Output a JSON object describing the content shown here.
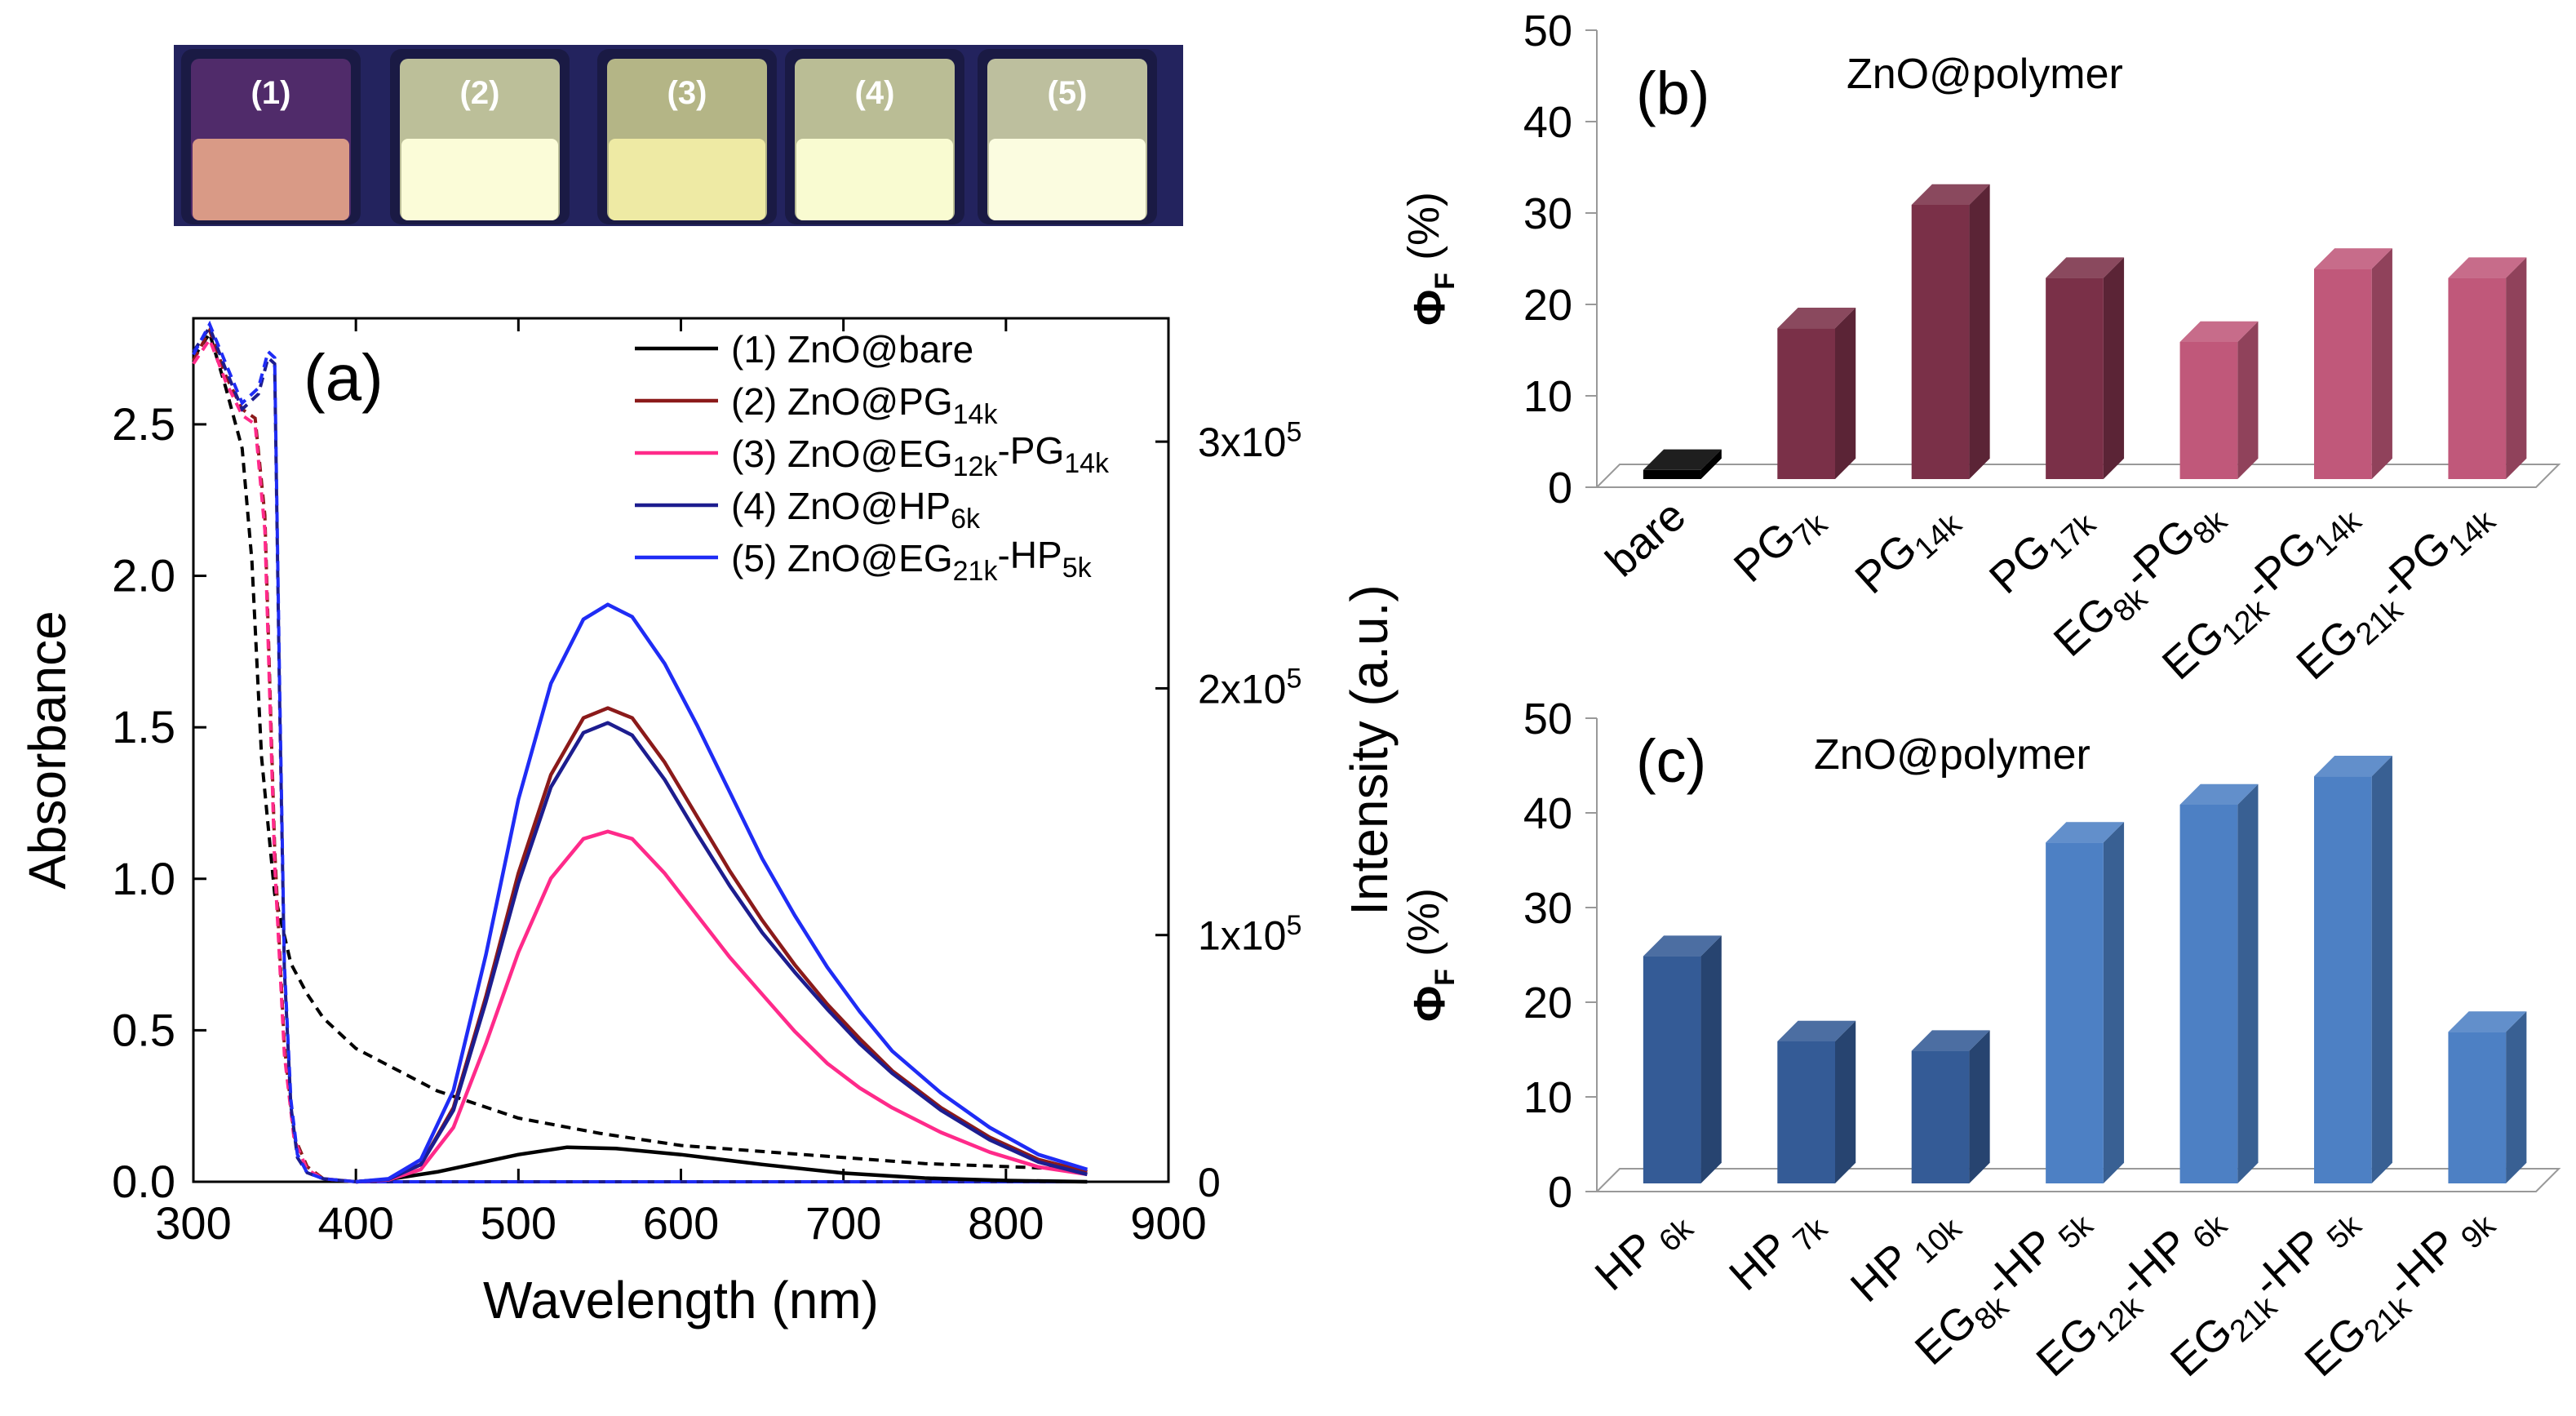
{
  "photo": {
    "labels": [
      "(1)",
      "(2)",
      "(3)",
      "(4)",
      "(5)"
    ],
    "vial_colors": [
      "#7d3b8a",
      "#f3f7b6",
      "#e8ea9c",
      "#f0f4b0",
      "#f4f7bc"
    ],
    "liquid_colors": [
      "#d99a86",
      "#fbfcd8",
      "#eeeaa4",
      "#f9fbd1",
      "#fbfce0"
    ],
    "background": "#23235e"
  },
  "colors": {
    "s1": "#000000",
    "s2": "#8b1a1a",
    "s3": "#ff2a8a",
    "s4": "#1d1d8f",
    "s5": "#1f2cf5",
    "bar_bare": "#000000",
    "bar_pg": "#7a3048",
    "bar_eg_pg": "#c0587a",
    "bar_hp": "#345b96",
    "bar_eg_hp": "#4d80c4"
  },
  "chart_data": [
    {
      "id": "a",
      "type": "line",
      "panel_label": "(a)",
      "xlabel": "Wavelength (nm)",
      "ylabel": "Absorbance",
      "y2label": "Intensity (a.u.)",
      "xlim": [
        300,
        900
      ],
      "ylim": [
        0,
        2.85
      ],
      "y2lim": [
        0,
        350000
      ],
      "xticks": [
        "300",
        "400",
        "500",
        "600",
        "700",
        "800",
        "900"
      ],
      "yticks": [
        "0.0",
        "0.5",
        "1.0",
        "1.5",
        "2.0",
        "2.5"
      ],
      "y2ticks": [
        {
          "value": 0,
          "base": "0",
          "exp": ""
        },
        {
          "value": 100000,
          "base": "1x10",
          "exp": "5"
        },
        {
          "value": 200000,
          "base": "2x10",
          "exp": "5"
        },
        {
          "value": 300000,
          "base": "3x10",
          "exp": "5"
        }
      ],
      "legend": [
        {
          "key": "s1",
          "prefix": "(1) ZnO@bare",
          "parts": []
        },
        {
          "key": "s2",
          "prefix": "(2) ZnO@PG",
          "parts": [
            {
              "sub": "14k"
            }
          ]
        },
        {
          "key": "s3",
          "prefix": "(3) ZnO@EG",
          "parts": [
            {
              "sub": "12k"
            },
            {
              "text": "-PG"
            },
            {
              "sub": "14k"
            }
          ]
        },
        {
          "key": "s4",
          "prefix": "(4) ZnO@HP",
          "parts": [
            {
              "sub": "6k"
            }
          ]
        },
        {
          "key": "s5",
          "prefix": "(5) ZnO@EG",
          "parts": [
            {
              "sub": "21k"
            },
            {
              "text": "-HP"
            },
            {
              "sub": "5k"
            }
          ]
        }
      ],
      "absorbance_series": [
        {
          "key": "s1",
          "x": [
            300,
            310,
            320,
            330,
            336,
            342,
            350,
            360,
            370,
            380,
            400,
            450,
            500,
            550,
            600,
            650,
            700,
            750,
            800,
            850
          ],
          "y": [
            2.72,
            2.8,
            2.62,
            2.42,
            2.05,
            1.4,
            0.95,
            0.72,
            0.62,
            0.54,
            0.44,
            0.3,
            0.21,
            0.16,
            0.12,
            0.1,
            0.08,
            0.06,
            0.05,
            0.04
          ]
        },
        {
          "key": "s2",
          "x": [
            300,
            310,
            320,
            330,
            338,
            344,
            350,
            356,
            362,
            370,
            380,
            400,
            500,
            700,
            850
          ],
          "y": [
            2.71,
            2.81,
            2.66,
            2.55,
            2.52,
            2.2,
            1.1,
            0.45,
            0.15,
            0.05,
            0.01,
            0.0,
            0.0,
            0.0,
            0.0
          ]
        },
        {
          "key": "s3",
          "x": [
            300,
            310,
            320,
            330,
            338,
            344,
            350,
            356,
            362,
            370,
            380,
            400,
            500,
            700,
            850
          ],
          "y": [
            2.7,
            2.78,
            2.64,
            2.53,
            2.5,
            2.15,
            1.05,
            0.42,
            0.14,
            0.04,
            0.01,
            0.0,
            0.0,
            0.0,
            0.0
          ]
        },
        {
          "key": "s4",
          "x": [
            300,
            310,
            320,
            330,
            340,
            346,
            350,
            353,
            356,
            360,
            364,
            370,
            380,
            400,
            500,
            700,
            850
          ],
          "y": [
            2.74,
            2.82,
            2.68,
            2.55,
            2.6,
            2.72,
            2.7,
            1.6,
            0.7,
            0.25,
            0.08,
            0.03,
            0.01,
            0.0,
            0.0,
            0.0,
            0.0
          ]
        },
        {
          "key": "s5",
          "x": [
            300,
            310,
            320,
            330,
            340,
            346,
            350,
            353,
            356,
            360,
            364,
            370,
            380,
            400,
            500,
            700,
            850
          ],
          "y": [
            2.73,
            2.83,
            2.7,
            2.57,
            2.62,
            2.74,
            2.72,
            1.65,
            0.72,
            0.27,
            0.09,
            0.03,
            0.01,
            0.0,
            0.0,
            0.0,
            0.0
          ]
        }
      ],
      "emission_series": [
        {
          "key": "s1",
          "x": [
            400,
            420,
            450,
            500,
            530,
            560,
            600,
            650,
            700,
            750,
            800,
            850
          ],
          "y": [
            0,
            1000,
            4000,
            11000,
            14000,
            13500,
            11000,
            7000,
            3500,
            1500,
            500,
            0
          ]
        },
        {
          "key": "s2",
          "x": [
            400,
            420,
            440,
            460,
            480,
            500,
            520,
            540,
            555,
            570,
            590,
            610,
            630,
            650,
            670,
            690,
            710,
            730,
            760,
            790,
            820,
            850
          ],
          "y": [
            0,
            1000,
            7000,
            30000,
            75000,
            125000,
            165000,
            188000,
            192000,
            188000,
            170000,
            148000,
            126000,
            106000,
            88000,
            72000,
            58000,
            45000,
            30000,
            18000,
            9000,
            4000
          ]
        },
        {
          "key": "s3",
          "x": [
            400,
            420,
            440,
            460,
            480,
            500,
            520,
            540,
            555,
            570,
            590,
            610,
            630,
            650,
            670,
            690,
            710,
            730,
            760,
            790,
            820,
            850
          ],
          "y": [
            0,
            800,
            5000,
            22000,
            56000,
            93000,
            123000,
            139000,
            142000,
            139000,
            125000,
            108000,
            91000,
            76000,
            61000,
            48000,
            38000,
            30000,
            20000,
            12000,
            6000,
            3000
          ]
        },
        {
          "key": "s4",
          "x": [
            400,
            420,
            440,
            460,
            480,
            500,
            520,
            540,
            555,
            570,
            590,
            610,
            630,
            650,
            670,
            690,
            710,
            730,
            760,
            790,
            820,
            850
          ],
          "y": [
            0,
            1000,
            7000,
            29000,
            73000,
            121000,
            160000,
            182000,
            186000,
            181000,
            163000,
            141000,
            120000,
            101000,
            85000,
            70000,
            56000,
            44000,
            29000,
            17000,
            8000,
            3000
          ]
        },
        {
          "key": "s5",
          "x": [
            400,
            420,
            440,
            460,
            480,
            500,
            520,
            540,
            555,
            570,
            590,
            610,
            630,
            650,
            670,
            690,
            710,
            730,
            760,
            790,
            820,
            850
          ],
          "y": [
            0,
            1200,
            9000,
            37000,
            92000,
            155000,
            202000,
            228000,
            234000,
            229000,
            210000,
            185000,
            158000,
            131000,
            108000,
            87000,
            69000,
            53000,
            36000,
            22000,
            11000,
            5000
          ]
        }
      ]
    },
    {
      "id": "b",
      "type": "bar",
      "panel_label": "(b)",
      "title": "ZnO@polymer",
      "ylabel_main": "Φ",
      "ylabel_sub": "F",
      "ylabel_unit": " (%)",
      "ylim": [
        0,
        50
      ],
      "yticks": [
        "0",
        "10",
        "20",
        "30",
        "40",
        "50"
      ],
      "categories": [
        {
          "prefix": "bare",
          "parts": []
        },
        {
          "prefix": "PG",
          "parts": [
            {
              "sub": "7k"
            }
          ]
        },
        {
          "prefix": "PG",
          "parts": [
            {
              "sub": "14k"
            }
          ]
        },
        {
          "prefix": "PG",
          "parts": [
            {
              "sub": "17k"
            }
          ]
        },
        {
          "prefix": "EG",
          "parts": [
            {
              "sub": "8k"
            },
            {
              "text": "-PG"
            },
            {
              "sub": "8k"
            }
          ]
        },
        {
          "prefix": "EG",
          "parts": [
            {
              "sub": "12k"
            },
            {
              "text": "-PG"
            },
            {
              "sub": "14k"
            }
          ]
        },
        {
          "prefix": "EG",
          "parts": [
            {
              "sub": "21k"
            },
            {
              "text": "-PG"
            },
            {
              "sub": "14k"
            }
          ]
        }
      ],
      "values": [
        1,
        16.5,
        30,
        22,
        15,
        23,
        22
      ],
      "color_keys": [
        "bar_bare",
        "bar_pg",
        "bar_pg",
        "bar_pg",
        "bar_eg_pg",
        "bar_eg_pg",
        "bar_eg_pg"
      ]
    },
    {
      "id": "c",
      "type": "bar",
      "panel_label": "(c)",
      "title": "ZnO@polymer",
      "ylabel_main": "Φ",
      "ylabel_sub": "F",
      "ylabel_unit": " (%)",
      "ylim": [
        0,
        50
      ],
      "yticks": [
        "0",
        "10",
        "20",
        "30",
        "40",
        "50"
      ],
      "categories": [
        {
          "prefix": "HP",
          "parts": [
            {
              "sub": " 6k"
            }
          ]
        },
        {
          "prefix": "HP",
          "parts": [
            {
              "sub": " 7k"
            }
          ]
        },
        {
          "prefix": "HP",
          "parts": [
            {
              "sub": " 10k"
            }
          ]
        },
        {
          "prefix": "EG",
          "parts": [
            {
              "sub": "8k"
            },
            {
              "text": "-HP"
            },
            {
              "sub": " 5k"
            }
          ]
        },
        {
          "prefix": "EG",
          "parts": [
            {
              "sub": "12k"
            },
            {
              "text": "-HP"
            },
            {
              "sub": " 6k"
            }
          ]
        },
        {
          "prefix": "EG",
          "parts": [
            {
              "sub": "21k"
            },
            {
              "text": "-HP"
            },
            {
              "sub": " 5k"
            }
          ]
        },
        {
          "prefix": "EG",
          "parts": [
            {
              "sub": "21k"
            },
            {
              "text": "-HP"
            },
            {
              "sub": " 9k"
            }
          ]
        }
      ],
      "values": [
        24,
        15,
        14,
        36,
        40,
        43,
        16
      ],
      "color_keys": [
        "bar_hp",
        "bar_hp",
        "bar_hp",
        "bar_eg_hp",
        "bar_eg_hp",
        "bar_eg_hp",
        "bar_eg_hp"
      ]
    }
  ]
}
